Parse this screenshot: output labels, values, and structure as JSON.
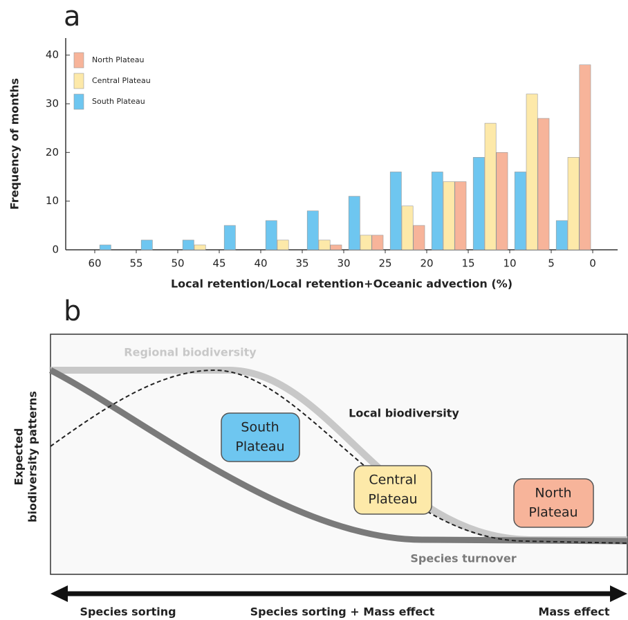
{
  "chart_data": {
    "type": "histogram",
    "panel_label": "a",
    "x_label": "Local retention/Local retention+Oceanic advection (%)",
    "y_label": "Frequency of months",
    "bins": [
      60,
      55,
      50,
      45,
      40,
      35,
      30,
      25,
      20,
      15,
      10,
      5,
      0
    ],
    "series": [
      {
        "name": "South Plateau",
        "color": "#6ec6f0",
        "values": [
          1,
          2,
          2,
          5,
          6,
          8,
          11,
          16,
          16,
          19,
          16,
          6
        ]
      },
      {
        "name": "Central Plateau",
        "color": "#fde9a9",
        "values": [
          0,
          0,
          1,
          0,
          2,
          2,
          3,
          9,
          14,
          26,
          32,
          19
        ]
      },
      {
        "name": "North Plateau",
        "color": "#f7b49a",
        "values": [
          0,
          0,
          0,
          0,
          0,
          1,
          3,
          5,
          14,
          20,
          27,
          38
        ]
      }
    ],
    "legend_order": [
      2,
      1,
      0
    ],
    "legend": "upper left",
    "xlim": [
      63.5,
      -3
    ],
    "xticks": [
      60,
      55,
      50,
      45,
      40,
      35,
      30,
      25,
      20,
      15,
      10,
      5,
      0
    ],
    "ylim": [
      0,
      43.5
    ],
    "yticks": [
      0,
      10,
      20,
      30,
      40
    ]
  },
  "panel_b": {
    "panel_label": "b",
    "y_label": [
      "Expected",
      "biodiversity patterns"
    ],
    "regional": "Regional  biodiversity",
    "local": "Local biodiversity",
    "turnover": "Species turnover",
    "boxes": [
      [
        "South",
        "Plateau"
      ],
      [
        "Central",
        "Plateau"
      ],
      [
        "North",
        "Plateau"
      ]
    ],
    "gradient": [
      "Species sorting",
      "Species sorting + Mass effect",
      "Mass effect"
    ]
  }
}
